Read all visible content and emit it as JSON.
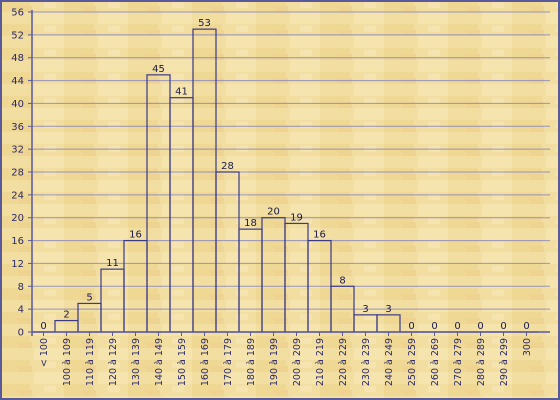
{
  "chart_data": {
    "type": "bar",
    "title": "",
    "xlabel": "",
    "ylabel": "",
    "ylim": [
      0,
      56
    ],
    "yticks": [
      0,
      4,
      8,
      12,
      16,
      20,
      24,
      28,
      32,
      36,
      40,
      44,
      48,
      52,
      56
    ],
    "grid": true,
    "legend": "none",
    "categories": [
      "< 100",
      "100 à 109",
      "110 à 119",
      "120 à 129",
      "130 à 139",
      "140 à 149",
      "150 à 159",
      "160 à 169",
      "170 à 179",
      "180 à 189",
      "190 à 199",
      "200 à 209",
      "210 à 219",
      "220 à 229",
      "230 à 239",
      "240 à 249",
      "250 à 259",
      "260 à 269",
      "270 à 279",
      "280 à 289",
      "290 à 299",
      "300"
    ],
    "values": [
      0,
      2,
      5,
      11,
      16,
      45,
      41,
      53,
      28,
      18,
      20,
      19,
      16,
      8,
      3,
      3,
      0,
      0,
      0,
      0,
      0,
      0
    ],
    "colors": {
      "background": "#f2dea0",
      "border": "#5a5a9a",
      "bar_stroke": "#3a3a8a",
      "grid": "#8080c0",
      "text": "#2a2a6a"
    }
  }
}
